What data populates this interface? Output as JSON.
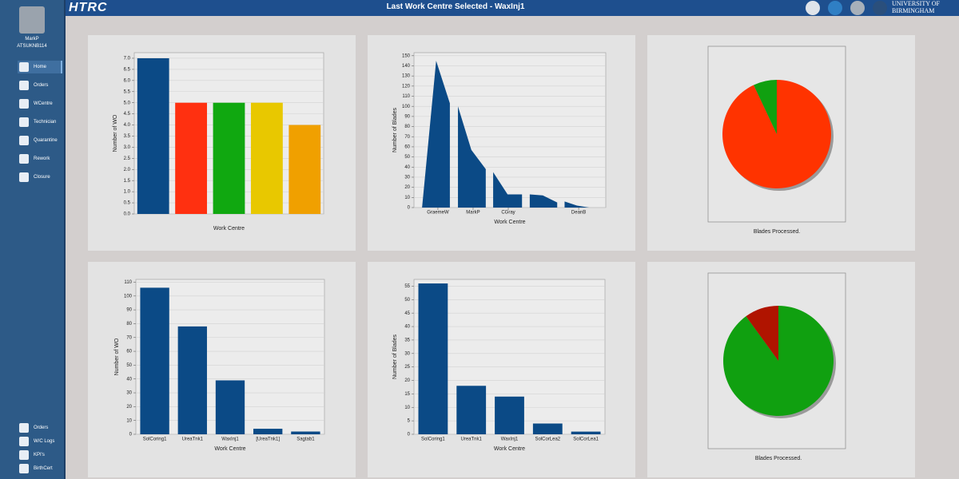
{
  "header": {
    "logo": "HTRC",
    "title": "Last Work Centre Selected - WaxInj1",
    "university": "UNIVERSITY OF BIRMINGHAM"
  },
  "sidebar": {
    "user": "MarkP",
    "user_id": "ATSUKNB114",
    "menu": [
      "Home",
      "Orders",
      "WCentre",
      "Technician",
      "Quarantine",
      "Rework",
      "Closure"
    ],
    "bottom_menu": [
      "Orders",
      "W/C Logs",
      "KPI's",
      "BirthCert"
    ]
  },
  "chart_data": [
    {
      "type": "bar",
      "xlabel": "Work Centre",
      "ylabel": "Number of WO",
      "categories": [
        null,
        null,
        null,
        null,
        null
      ],
      "values": [
        7,
        5,
        5,
        5,
        4
      ],
      "colors": [
        "#0b4a86",
        "#ff3010",
        "#10a810",
        "#e8c800",
        "#f0a000"
      ],
      "ylim": [
        0,
        7.25
      ],
      "yticks": [
        {
          "value": 0,
          "label": "0.0"
        },
        {
          "value": 0.5,
          "label": "0.5"
        },
        {
          "value": 1,
          "label": "1.0"
        },
        {
          "value": 1.5,
          "label": "1.5"
        },
        {
          "value": 2,
          "label": "2.0"
        },
        {
          "value": 2.5,
          "label": "2.5"
        },
        {
          "value": 3,
          "label": "3.0"
        },
        {
          "value": 3.5,
          "label": "3.5"
        },
        {
          "value": 4,
          "label": "4.0"
        },
        {
          "value": 4.5,
          "label": "4.5"
        },
        {
          "value": 5,
          "label": "5.0"
        },
        {
          "value": 5.5,
          "label": "5.5"
        },
        {
          "value": 6,
          "label": "6.0"
        },
        {
          "value": 6.5,
          "label": "6.5"
        },
        {
          "value": 7,
          "label": "7.0"
        }
      ]
    },
    {
      "type": "area",
      "xlabel": "Work Centre",
      "ylabel": "Number of Blades",
      "color": "#0b4a86",
      "x": [
        0.55,
        0.95,
        1.34,
        null,
        1.57,
        1.95,
        2.36,
        null,
        2.57,
        2.98,
        3.39,
        null,
        3.61,
        3.98,
        4.39,
        null,
        4.6,
        4.95,
        5.3
      ],
      "values": [
        0,
        145,
        103,
        null,
        100,
        57,
        38,
        null,
        35,
        13,
        13,
        null,
        13,
        12,
        5,
        null,
        6,
        2,
        0
      ],
      "xlim": [
        0.32,
        5.77
      ],
      "xticks": [
        {
          "value": 1,
          "label": "GraemeW"
        },
        {
          "value": 2,
          "label": "MarkP"
        },
        {
          "value": 3,
          "label": "CGray"
        },
        {
          "value": 5,
          "label": "DeanB"
        }
      ],
      "ylim": [
        0,
        153
      ],
      "yticks": [
        0,
        10,
        20,
        30,
        40,
        50,
        60,
        70,
        80,
        90,
        100,
        110,
        120,
        130,
        140,
        150
      ]
    },
    {
      "type": "pie",
      "title": "Blades Processed.",
      "values": [
        93,
        7
      ],
      "colors": [
        "#ff3300",
        "#10a010"
      ]
    },
    {
      "type": "bar",
      "xlabel": "Work Centre",
      "ylabel": "Number of WO",
      "color": "#0b4a86",
      "categories": [
        "SolCoring1",
        "UreaTnk1",
        "WaxInj1",
        "[UreaTnk1]",
        "Sagtab1"
      ],
      "values": [
        106,
        78,
        39,
        4,
        2
      ],
      "ylim": [
        0,
        112
      ],
      "yticks": [
        0,
        10,
        20,
        30,
        40,
        50,
        60,
        70,
        80,
        90,
        100,
        110
      ]
    },
    {
      "type": "bar",
      "xlabel": "Work Centre",
      "ylabel": "Number of Blades",
      "color": "#0b4a86",
      "categories": [
        "SolCoring1",
        "UreaTnk1",
        "WaxInj1",
        "SolCorLea2",
        "SolCorLea1"
      ],
      "values": [
        56,
        18,
        14,
        4,
        1
      ],
      "ylim": [
        0,
        57.5
      ],
      "yticks": [
        0,
        5,
        10,
        15,
        20,
        25,
        30,
        35,
        40,
        45,
        50,
        55
      ]
    },
    {
      "type": "pie",
      "title": "Blades Processed.",
      "values": [
        90,
        10
      ],
      "colors": [
        "#10a010",
        "#b01400"
      ]
    }
  ]
}
